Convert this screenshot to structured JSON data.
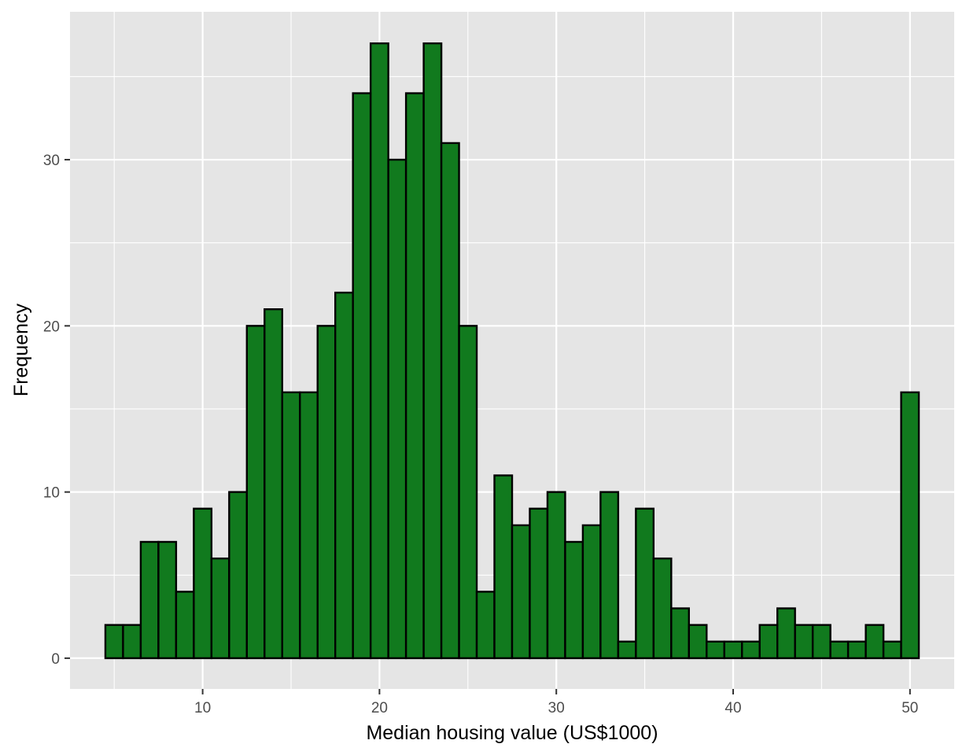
{
  "chart_data": {
    "type": "bar",
    "subtype": "histogram",
    "title": "",
    "xlabel": "Median housing value (US$1000)",
    "ylabel": "Frequency",
    "xlim": [
      2.5,
      52.5
    ],
    "ylim": [
      -1.85,
      38.9
    ],
    "x_ticks": [
      10,
      20,
      30,
      40,
      50
    ],
    "y_ticks": [
      0,
      10,
      20,
      30
    ],
    "grid": true,
    "legend": "none",
    "bin_width": 1,
    "bins_start": [
      4.5,
      5.5,
      6.5,
      7.5,
      8.5,
      9.5,
      10.5,
      11.5,
      12.5,
      13.5,
      14.5,
      15.5,
      16.5,
      17.5,
      18.5,
      19.5,
      20.5,
      21.5,
      22.5,
      23.5,
      24.5,
      25.5,
      26.5,
      27.5,
      28.5,
      29.5,
      30.5,
      31.5,
      32.5,
      33.5,
      34.5,
      35.5,
      36.5,
      37.5,
      38.5,
      39.5,
      40.5,
      41.5,
      42.5,
      43.5,
      44.5,
      45.5,
      46.5,
      47.5,
      48.5,
      49.5
    ],
    "values": [
      2,
      2,
      7,
      7,
      4,
      9,
      6,
      10,
      20,
      21,
      16,
      16,
      20,
      22,
      34,
      37,
      30,
      34,
      37,
      31,
      20,
      4,
      11,
      8,
      9,
      10,
      7,
      8,
      10,
      1,
      9,
      6,
      3,
      2,
      1,
      1,
      1,
      2,
      3,
      2,
      2,
      1,
      1,
      2,
      1,
      16
    ],
    "bar_fill": "#117a1e",
    "bar_stroke": "#000000",
    "panel_background": "#e5e5e5",
    "gridline_color": "#ffffff"
  }
}
